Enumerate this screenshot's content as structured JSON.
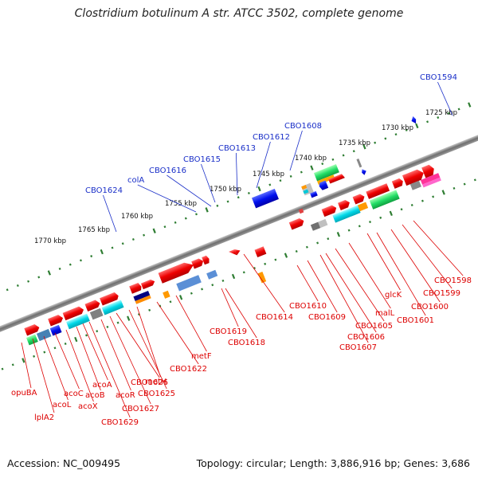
{
  "title": "Clostridium botulinum A str. ATCC 3502, complete genome",
  "accession": "Accession: NC_009495",
  "topology": "Topology: circular; Length: 3,886,916 bp; Genes: 3,686",
  "scale": {
    "ticks": [
      "1725 kbp",
      "1730 kbp",
      "1735 kbp",
      "1740 kbp",
      "1745 kbp",
      "1750 kbp",
      "1755 kbp",
      "1760 kbp",
      "1765 kbp",
      "1770 kbp"
    ]
  },
  "upper_labels": [
    "CBO1594",
    "CBO1608",
    "CBO1612",
    "CBO1613",
    "CBO1615",
    "CBO1616",
    "colA",
    "CBO1624"
  ],
  "lower_labels": [
    "opuBA",
    "lplA2",
    "acoL",
    "acoC",
    "acoX",
    "acoB",
    "acoA",
    "CBO1629",
    "acoR",
    "CBO1627",
    "CBO1626",
    "CBO1625",
    "metH",
    "CBO1622",
    "metF",
    "CBO1619",
    "CBO1618",
    "CBO1614",
    "CBO1610",
    "CBO1609",
    "CBO1606",
    "CBO1607",
    "CBO1605",
    "malL",
    "glcK",
    "CBO1601",
    "CBO1600",
    "CBO1599",
    "CBO1598"
  ],
  "colors": {
    "gene_label": "#dd0000",
    "upper_label": "#1a2fc8",
    "backbone": "#808080",
    "tick_dot": "#2e7d32",
    "forward_gene": "#ff0000",
    "reverse_gene": "#0000ee"
  }
}
